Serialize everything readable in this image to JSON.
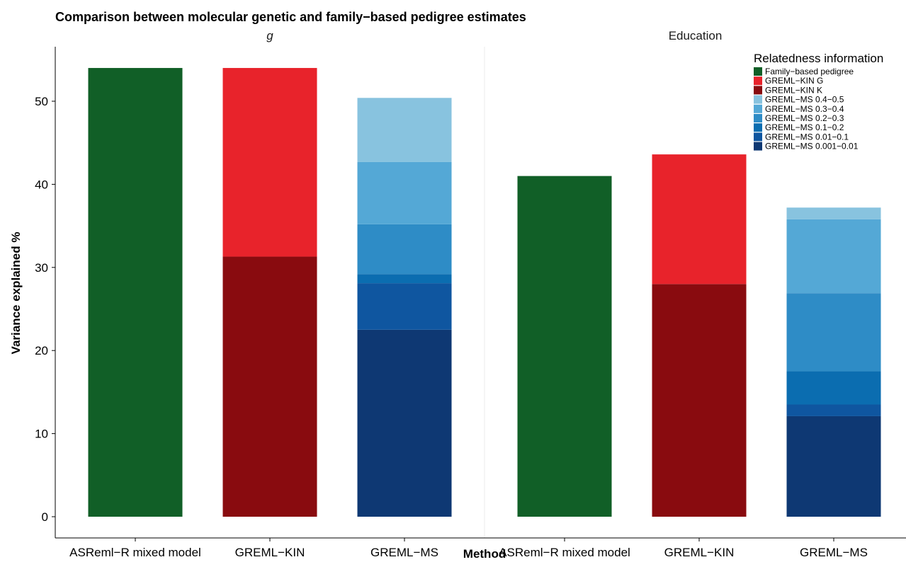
{
  "chart_data": {
    "type": "bar",
    "stacked": true,
    "title": "Comparison between molecular genetic and family−based pedigree estimates",
    "xlabel": "Method",
    "ylabel": "Variance explained %",
    "ylim": [
      0,
      55
    ],
    "yticks": [
      0,
      10,
      20,
      30,
      40,
      50
    ],
    "grid": false,
    "legend_position": "top-right",
    "legend_title": "Relatedness information",
    "series": [
      {
        "name": "Family−based pedigree",
        "color": "#115f27"
      },
      {
        "name": "GREML−KIN G",
        "color": "#e8232b"
      },
      {
        "name": "GREML−KIN K",
        "color": "#890b0f"
      },
      {
        "name": "GREML−MS 0.4−0.5",
        "color": "#88c3df"
      },
      {
        "name": "GREML−MS 0.3−0.4",
        "color": "#54a8d6"
      },
      {
        "name": "GREML−MS 0.2−0.3",
        "color": "#2e8cc6"
      },
      {
        "name": "GREML−MS 0.1−0.2",
        "color": "#0b6db0"
      },
      {
        "name": "GREML−MS 0.01−0.1",
        "color": "#0f56a0"
      },
      {
        "name": "GREML−MS 0.001−0.01",
        "color": "#0e3873"
      }
    ],
    "panels": [
      {
        "label": "g",
        "italic": true,
        "categories": [
          "ASReml−R mixed model",
          "GREML−KIN",
          "GREML−MS"
        ],
        "bars": [
          {
            "category": "ASReml−R mixed model",
            "segments": [
              {
                "series": "Family−based pedigree",
                "value": 54.0
              }
            ]
          },
          {
            "category": "GREML−KIN",
            "segments": [
              {
                "series": "GREML−KIN K",
                "value": 31.3
              },
              {
                "series": "GREML−KIN G",
                "value": 22.7
              }
            ]
          },
          {
            "category": "GREML−MS",
            "segments": [
              {
                "series": "GREML−MS 0.001−0.01",
                "value": 22.5
              },
              {
                "series": "GREML−MS 0.01−0.1",
                "value": 5.6
              },
              {
                "series": "GREML−MS 0.1−0.2",
                "value": 1.1
              },
              {
                "series": "GREML−MS 0.2−0.3",
                "value": 6.0
              },
              {
                "series": "GREML−MS 0.3−0.4",
                "value": 7.5
              },
              {
                "series": "GREML−MS 0.4−0.5",
                "value": 7.7
              }
            ]
          }
        ]
      },
      {
        "label": "Education",
        "italic": false,
        "categories": [
          "ASReml−R mixed model",
          "GREML−KIN",
          "GREML−MS"
        ],
        "bars": [
          {
            "category": "ASReml−R mixed model",
            "segments": [
              {
                "series": "Family−based pedigree",
                "value": 41.0
              }
            ]
          },
          {
            "category": "GREML−KIN",
            "segments": [
              {
                "series": "GREML−KIN K",
                "value": 28.0
              },
              {
                "series": "GREML−KIN G",
                "value": 15.6
              }
            ]
          },
          {
            "category": "GREML−MS",
            "segments": [
              {
                "series": "GREML−MS 0.001−0.01",
                "value": 12.1
              },
              {
                "series": "GREML−MS 0.01−0.1",
                "value": 1.4
              },
              {
                "series": "GREML−MS 0.1−0.2",
                "value": 4.0
              },
              {
                "series": "GREML−MS 0.2−0.3",
                "value": 9.4
              },
              {
                "series": "GREML−MS 0.3−0.4",
                "value": 8.9
              },
              {
                "series": "GREML−MS 0.4−0.5",
                "value": 1.4
              }
            ]
          }
        ]
      }
    ]
  }
}
